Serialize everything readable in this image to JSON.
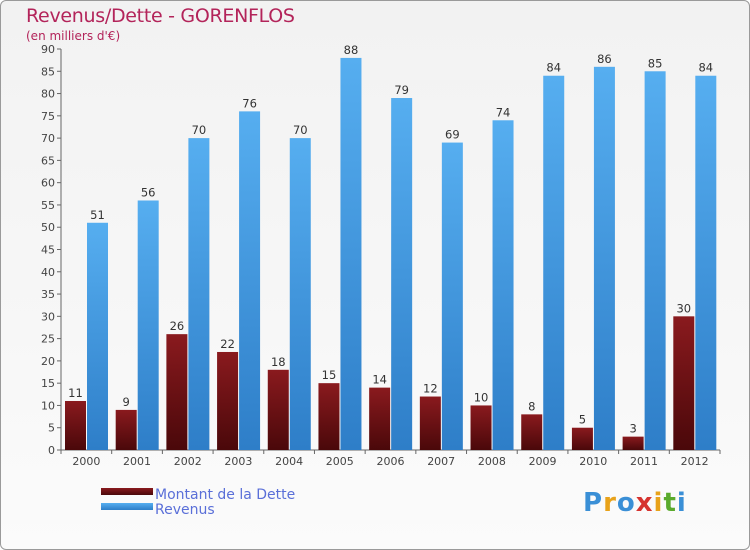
{
  "title": "Revenus/Dette - GORENFLOS",
  "subtitle": "(en milliers d'€)",
  "brand": {
    "letters": [
      "P",
      "r",
      "o",
      "x",
      "i",
      "t",
      "i"
    ],
    "colors": [
      "#3a8fd6",
      "#e8a21a",
      "#3a8fd6",
      "#d6332f",
      "#e8a21a",
      "#5aaa2c",
      "#3a8fd6"
    ]
  },
  "chart_data": {
    "type": "bar",
    "categories": [
      "2000",
      "2001",
      "2002",
      "2003",
      "2004",
      "2005",
      "2006",
      "2007",
      "2008",
      "2009",
      "2010",
      "2011",
      "2012"
    ],
    "series": [
      {
        "name": "Montant de la Dette",
        "values": [
          11,
          9,
          26,
          22,
          18,
          15,
          14,
          12,
          10,
          8,
          5,
          3,
          30
        ],
        "color": "#7a1418"
      },
      {
        "name": "Revenus",
        "values": [
          51,
          56,
          70,
          76,
          70,
          88,
          79,
          69,
          74,
          84,
          86,
          85,
          84
        ],
        "color": "#3d95de"
      }
    ],
    "ylim": [
      0,
      90
    ],
    "yticks": [
      0,
      5,
      10,
      15,
      20,
      25,
      30,
      35,
      40,
      45,
      50,
      55,
      60,
      65,
      70,
      75,
      80,
      85,
      90
    ],
    "grid": false,
    "legend": "bottom-left"
  }
}
